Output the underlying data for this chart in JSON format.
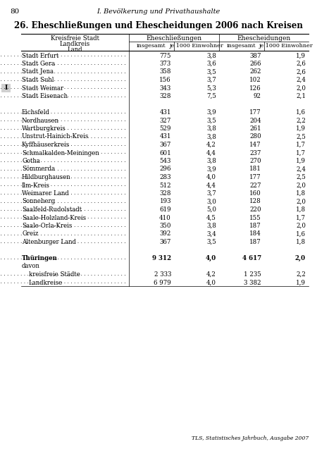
{
  "page_number": "80",
  "header_center": "I. Bevölkerung und Privathaushalte",
  "title": "26. Eheschließungen und Ehescheidungen 2006 nach Kreisen",
  "col_header_left1": "Kreisfreie Stadt",
  "col_header_left2": "Landkreis",
  "col_header_left3": "Land",
  "col_header_group1": "Eheschließungen",
  "col_header_group2": "Ehescheidungen",
  "col_sub1": "insgesamt",
  "col_sub2": "je 1000 Einwohner",
  "col_sub3": "insgesamt",
  "col_sub4": "je 1000 Einwohner",
  "footer": "TLS, Statistisches Jahrbuch, Ausgabe 2007",
  "sidebar_label": "I",
  "sidebar_row_idx": 4,
  "rows": [
    {
      "name": "Stadt Erfurt",
      "dots": true,
      "bold": false,
      "indent": 0,
      "v1": "775",
      "v2": "3,8",
      "v3": "387",
      "v4": "1,9"
    },
    {
      "name": "Stadt Gera",
      "dots": true,
      "bold": false,
      "indent": 0,
      "v1": "373",
      "v2": "3,6",
      "v3": "266",
      "v4": "2,6"
    },
    {
      "name": "Stadt Jena",
      "dots": true,
      "bold": false,
      "indent": 0,
      "v1": "358",
      "v2": "3,5",
      "v3": "262",
      "v4": "2,6"
    },
    {
      "name": "Stadt Suhl",
      "dots": true,
      "bold": false,
      "indent": 0,
      "v1": "156",
      "v2": "3,7",
      "v3": "102",
      "v4": "2,4"
    },
    {
      "name": "Stadt Weimar",
      "dots": true,
      "bold": false,
      "indent": 0,
      "v1": "343",
      "v2": "5,3",
      "v3": "126",
      "v4": "2,0"
    },
    {
      "name": "Stadt Eisenach",
      "dots": true,
      "bold": false,
      "indent": 0,
      "v1": "328",
      "v2": "7,5",
      "v3": "92",
      "v4": "2,1"
    },
    {
      "name": "",
      "dots": false,
      "bold": false,
      "indent": 0,
      "v1": "",
      "v2": "",
      "v3": "",
      "v4": ""
    },
    {
      "name": "Eichsfeld",
      "dots": true,
      "bold": false,
      "indent": 0,
      "v1": "431",
      "v2": "3,9",
      "v3": "177",
      "v4": "1,6"
    },
    {
      "name": "Nordhausen",
      "dots": true,
      "bold": false,
      "indent": 0,
      "v1": "327",
      "v2": "3,5",
      "v3": "204",
      "v4": "2,2"
    },
    {
      "name": "Wartburgkreis",
      "dots": true,
      "bold": false,
      "indent": 0,
      "v1": "529",
      "v2": "3,8",
      "v3": "261",
      "v4": "1,9"
    },
    {
      "name": "Unstrut-Hainich-Kreis",
      "dots": true,
      "bold": false,
      "indent": 0,
      "v1": "431",
      "v2": "3,8",
      "v3": "280",
      "v4": "2,5"
    },
    {
      "name": "Kyffhäuserkreis",
      "dots": true,
      "bold": false,
      "indent": 0,
      "v1": "367",
      "v2": "4,2",
      "v3": "147",
      "v4": "1,7"
    },
    {
      "name": "Schmalkalden-Meiningen",
      "dots": true,
      "bold": false,
      "indent": 0,
      "v1": "601",
      "v2": "4,4",
      "v3": "237",
      "v4": "1,7"
    },
    {
      "name": "Gotha",
      "dots": true,
      "bold": false,
      "indent": 0,
      "v1": "543",
      "v2": "3,8",
      "v3": "270",
      "v4": "1,9"
    },
    {
      "name": "Sömmerda",
      "dots": true,
      "bold": false,
      "indent": 0,
      "v1": "296",
      "v2": "3,9",
      "v3": "181",
      "v4": "2,4"
    },
    {
      "name": "Hildburghausen",
      "dots": true,
      "bold": false,
      "indent": 0,
      "v1": "283",
      "v2": "4,0",
      "v3": "177",
      "v4": "2,5"
    },
    {
      "name": "Ilm-Kreis",
      "dots": true,
      "bold": false,
      "indent": 0,
      "v1": "512",
      "v2": "4,4",
      "v3": "227",
      "v4": "2,0"
    },
    {
      "name": "Weimarer Land",
      "dots": true,
      "bold": false,
      "indent": 0,
      "v1": "328",
      "v2": "3,7",
      "v3": "160",
      "v4": "1,8"
    },
    {
      "name": "Sonneberg",
      "dots": true,
      "bold": false,
      "indent": 0,
      "v1": "193",
      "v2": "3,0",
      "v3": "128",
      "v4": "2,0"
    },
    {
      "name": "Saalfeld-Rudolstadt",
      "dots": true,
      "bold": false,
      "indent": 0,
      "v1": "619",
      "v2": "5,0",
      "v3": "220",
      "v4": "1,8"
    },
    {
      "name": "Saale-Holzland-Kreis",
      "dots": true,
      "bold": false,
      "indent": 0,
      "v1": "410",
      "v2": "4,5",
      "v3": "155",
      "v4": "1,7"
    },
    {
      "name": "Saale-Orla-Kreis",
      "dots": true,
      "bold": false,
      "indent": 0,
      "v1": "350",
      "v2": "3,8",
      "v3": "187",
      "v4": "2,0"
    },
    {
      "name": "Greiz",
      "dots": true,
      "bold": false,
      "indent": 0,
      "v1": "392",
      "v2": "3,4",
      "v3": "184",
      "v4": "1,6"
    },
    {
      "name": "Altenburger Land",
      "dots": true,
      "bold": false,
      "indent": 0,
      "v1": "367",
      "v2": "3,5",
      "v3": "187",
      "v4": "1,8"
    },
    {
      "name": "",
      "dots": false,
      "bold": false,
      "indent": 0,
      "v1": "",
      "v2": "",
      "v3": "",
      "v4": ""
    },
    {
      "name": "Thüringen",
      "dots": true,
      "bold": true,
      "indent": 0,
      "v1": "9 312",
      "v2": "4,0",
      "v3": "4 617",
      "v4": "2,0"
    },
    {
      "name": "davon",
      "dots": false,
      "bold": false,
      "indent": 0,
      "v1": "",
      "v2": "",
      "v3": "",
      "v4": ""
    },
    {
      "name": "kreisfreie Städte",
      "dots": true,
      "bold": false,
      "indent": 1,
      "v1": "2 333",
      "v2": "4,2",
      "v3": "1 235",
      "v4": "2,2"
    },
    {
      "name": "Landkreise",
      "dots": true,
      "bold": false,
      "indent": 1,
      "v1": "6 979",
      "v2": "4,0",
      "v3": "3 382",
      "v4": "1,9"
    }
  ]
}
